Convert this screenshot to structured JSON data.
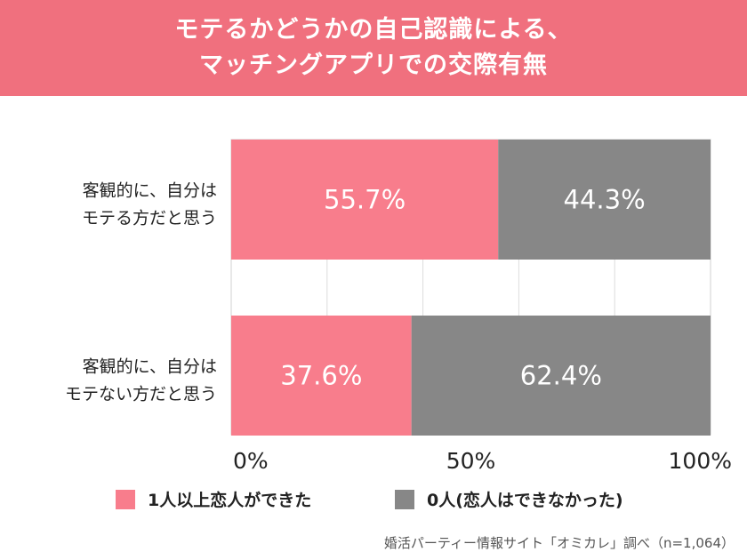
{
  "header": {
    "title_line1": "モテるかどうかの自己認識による、",
    "title_line2": "マッチングアプリでの交際有無"
  },
  "chart_data": {
    "type": "bar",
    "orientation": "horizontal",
    "stacked": true,
    "categories": [
      [
        "客観的に、自分は",
        "モテる方だと思う"
      ],
      [
        "客観的に、自分は",
        "モテない方だと思う"
      ]
    ],
    "series": [
      {
        "name": "1人以上恋人ができた",
        "color": "#f87d8c",
        "values": [
          55.7,
          37.6
        ],
        "labels": [
          "55.7%",
          "37.6%"
        ]
      },
      {
        "name": "0人(恋人はできなかった)",
        "color": "#878787",
        "values": [
          44.3,
          62.4
        ],
        "labels": [
          "44.3%",
          "62.4%"
        ]
      }
    ],
    "xlim": [
      0,
      100
    ],
    "x_ticks": [
      {
        "value": 0,
        "label": "0%"
      },
      {
        "value": 50,
        "label": "50%"
      },
      {
        "value": 100,
        "label": "100%"
      }
    ],
    "grid": true,
    "legend_position": "bottom"
  },
  "legend": {
    "items": [
      {
        "label": "1人以上恋人ができた",
        "color": "#f87d8c"
      },
      {
        "label": "0人(恋人はできなかった)",
        "color": "#878787"
      }
    ]
  },
  "source": "婚活パーティー情報サイト「オミカレ」調べ（n=1,064）"
}
